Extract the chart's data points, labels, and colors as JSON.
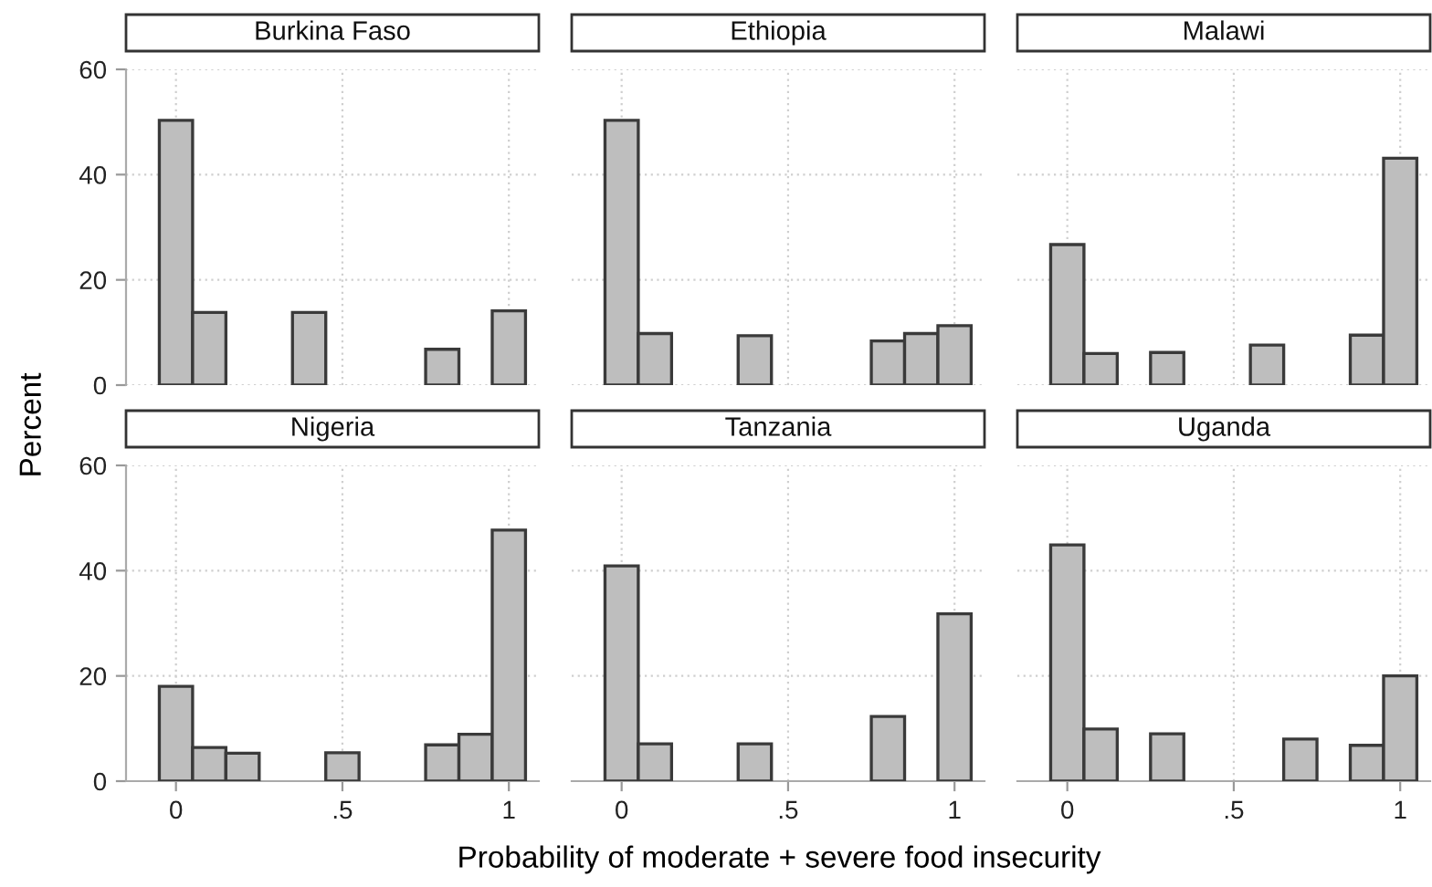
{
  "chart_data": [
    {
      "type": "histogram",
      "title": "Burkina Faso",
      "ylabel": "Percent",
      "bins": [
        -0.05,
        0.05,
        0.15,
        0.25,
        0.35,
        0.45,
        0.55,
        0.65,
        0.75,
        0.85,
        0.95,
        1.05
      ],
      "values": [
        50.3,
        13.8,
        0,
        0,
        13.8,
        0,
        0,
        0,
        6.8,
        0,
        14.1
      ],
      "color": "#bebebe",
      "xlim": [
        -0.15,
        1.09
      ],
      "ylim": [
        0,
        60
      ],
      "xticks": [
        {
          "value": 0,
          "label": null
        },
        {
          "value": 0.5,
          "label": null
        },
        {
          "value": 1,
          "label": null
        }
      ],
      "yticks": [
        0,
        20,
        40,
        60
      ],
      "grid": true,
      "tick_labels": "y"
    },
    {
      "type": "histogram",
      "title": "Ethiopia",
      "bins": [
        -0.05,
        0.05,
        0.15,
        0.25,
        0.35,
        0.45,
        0.55,
        0.65,
        0.75,
        0.85,
        0.95,
        1.05
      ],
      "values": [
        50.3,
        9.8,
        0,
        0,
        9.4,
        0,
        0,
        0,
        8.4,
        9.8,
        11.3
      ],
      "color": "#bebebe",
      "xlim": [
        -0.15,
        1.09
      ],
      "ylim": [
        0,
        60
      ],
      "xticks": [
        {
          "value": 0,
          "label": null
        },
        {
          "value": 0.5,
          "label": null
        },
        {
          "value": 1,
          "label": null
        }
      ],
      "yticks": [
        0,
        20,
        40,
        60
      ],
      "grid": true,
      "tick_labels": false
    },
    {
      "type": "histogram",
      "title": "Malawi",
      "bins": [
        -0.05,
        0.05,
        0.15,
        0.25,
        0.35,
        0.45,
        0.55,
        0.65,
        0.75,
        0.85,
        0.95,
        1.05
      ],
      "values": [
        26.7,
        6.0,
        0,
        6.2,
        0,
        0,
        7.6,
        0,
        0,
        9.5,
        43.1
      ],
      "color": "#bebebe",
      "xlim": [
        -0.15,
        1.09
      ],
      "ylim": [
        0,
        60
      ],
      "xticks": [
        {
          "value": 0,
          "label": null
        },
        {
          "value": 0.5,
          "label": null
        },
        {
          "value": 1,
          "label": null
        }
      ],
      "yticks": [
        0,
        20,
        40,
        60
      ],
      "grid": true,
      "tick_labels": false
    },
    {
      "type": "histogram",
      "title": "Nigeria",
      "bins": [
        -0.05,
        0.05,
        0.15,
        0.25,
        0.35,
        0.45,
        0.55,
        0.65,
        0.75,
        0.85,
        0.95,
        1.05
      ],
      "values": [
        18.0,
        6.4,
        5.3,
        0,
        0,
        5.4,
        0,
        0,
        6.9,
        8.9,
        47.7
      ],
      "color": "#bebebe",
      "xlim": [
        -0.15,
        1.09
      ],
      "ylim": [
        0,
        60
      ],
      "xticks": [
        0,
        {
          "value": 0.5,
          "label": ".5"
        },
        1
      ],
      "yticks": [
        0,
        20,
        40,
        60
      ],
      "grid": true
    },
    {
      "type": "histogram",
      "title": "Tanzania",
      "xlabel": "Probability of moderate + severe food insecurity",
      "bins": [
        -0.05,
        0.05,
        0.15,
        0.25,
        0.35,
        0.45,
        0.55,
        0.65,
        0.75,
        0.85,
        0.95,
        1.05
      ],
      "values": [
        40.9,
        7.1,
        0,
        0,
        7.1,
        0,
        0,
        0,
        12.3,
        0,
        31.8
      ],
      "color": "#bebebe",
      "xlim": [
        -0.15,
        1.09
      ],
      "ylim": [
        0,
        60
      ],
      "xticks": [
        0,
        {
          "value": 0.5,
          "label": ".5"
        },
        1
      ],
      "yticks": [
        0,
        20,
        40,
        60
      ],
      "grid": true,
      "tick_labels": "x"
    },
    {
      "type": "histogram",
      "title": "Uganda",
      "bins": [
        -0.05,
        0.05,
        0.15,
        0.25,
        0.35,
        0.45,
        0.55,
        0.65,
        0.75,
        0.85,
        0.95,
        1.05
      ],
      "values": [
        44.9,
        9.9,
        0,
        9.0,
        0,
        0,
        0,
        8.0,
        0,
        6.8,
        20.0
      ],
      "color": "#bebebe",
      "xlim": [
        -0.15,
        1.09
      ],
      "ylim": [
        0,
        60
      ],
      "xticks": [
        0,
        {
          "value": 0.5,
          "label": ".5"
        },
        1
      ],
      "yticks": [
        0,
        20,
        40,
        60
      ],
      "grid": true,
      "tick_labels": "x"
    }
  ]
}
